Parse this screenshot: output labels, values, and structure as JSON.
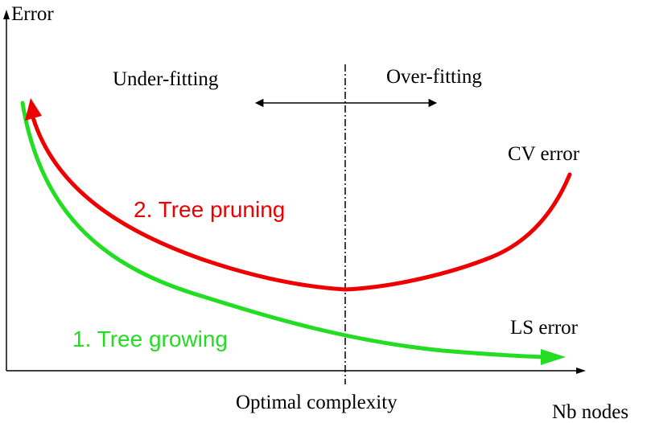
{
  "axes": {
    "y_label": "Error",
    "x_label": "Nb nodes"
  },
  "regions": {
    "left": "Under-fitting",
    "right": "Over-fitting",
    "divider_label": "Optimal complexity"
  },
  "curves": {
    "cv": {
      "label": "CV error",
      "color": "#ee0000"
    },
    "ls": {
      "label": "LS error",
      "color": "#22dd22"
    }
  },
  "steps": {
    "growing": "1. Tree growing",
    "pruning": "2. Tree pruning"
  }
}
